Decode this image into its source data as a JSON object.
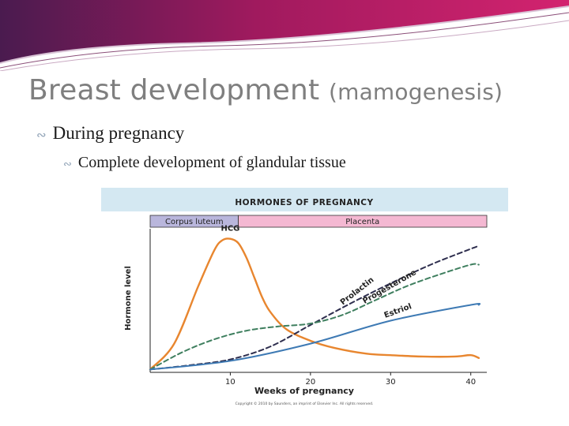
{
  "slide": {
    "title_main": "Breast development ",
    "title_paren": "(mamogenesis)",
    "bullets": [
      {
        "level": 1,
        "text": "During pregnancy"
      },
      {
        "level": 2,
        "text": "Complete development of glandular tissue"
      }
    ],
    "colors": {
      "header_magenta": "#c2185b",
      "header_purple": "#6a1b4d",
      "title_gray": "#7f7f7f",
      "bullet_glyph": "#8fa2b6"
    },
    "bullet_icon": "swirl-bullet-icon"
  },
  "chart_data": {
    "type": "line",
    "title": "HORMONES OF PREGNANCY",
    "xlabel": "Weeks of pregnancy",
    "ylabel": "Hormone level",
    "xlim": [
      0,
      42
    ],
    "ylim": [
      0,
      100
    ],
    "xticks": [
      10,
      20,
      30,
      40
    ],
    "grid": false,
    "phases": [
      {
        "label": "Corpus luteum",
        "x_start": 0,
        "x_end": 11,
        "color": "#b9b6dc"
      },
      {
        "label": "Placenta",
        "x_start": 11,
        "x_end": 42,
        "color": "#f4b8d2"
      }
    ],
    "series": [
      {
        "name": "HCG",
        "color": "#e8862f",
        "style": "solid",
        "points": [
          [
            0,
            2
          ],
          [
            3,
            20
          ],
          [
            6,
            60
          ],
          [
            8,
            85
          ],
          [
            9,
            92
          ],
          [
            10,
            93
          ],
          [
            11,
            90
          ],
          [
            12,
            80
          ],
          [
            13,
            66
          ],
          [
            14,
            52
          ],
          [
            15,
            42
          ],
          [
            17,
            30
          ],
          [
            20,
            22
          ],
          [
            23,
            17
          ],
          [
            27,
            13
          ],
          [
            30,
            12
          ],
          [
            34,
            11
          ],
          [
            38,
            11
          ],
          [
            40,
            12
          ],
          [
            41,
            10
          ]
        ]
      },
      {
        "name": "Prolactin",
        "color": "#2e2e4e",
        "style": "dashed",
        "points": [
          [
            0,
            2
          ],
          [
            5,
            5
          ],
          [
            10,
            9
          ],
          [
            15,
            18
          ],
          [
            20,
            33
          ],
          [
            25,
            48
          ],
          [
            30,
            62
          ],
          [
            35,
            75
          ],
          [
            40,
            86
          ],
          [
            41,
            88
          ]
        ]
      },
      {
        "name": "Progesterone",
        "color": "#3f7f5f",
        "style": "dashed",
        "points": [
          [
            0,
            2
          ],
          [
            4,
            14
          ],
          [
            8,
            23
          ],
          [
            12,
            29
          ],
          [
            16,
            32
          ],
          [
            20,
            34
          ],
          [
            24,
            40
          ],
          [
            28,
            50
          ],
          [
            32,
            60
          ],
          [
            36,
            68
          ],
          [
            40,
            75
          ],
          [
            41,
            75
          ]
        ]
      },
      {
        "name": "Estriol",
        "color": "#3e7ab4",
        "style": "solid",
        "points": [
          [
            0,
            2
          ],
          [
            10,
            8
          ],
          [
            20,
            20
          ],
          [
            30,
            36
          ],
          [
            40,
            47
          ],
          [
            41,
            47
          ]
        ]
      }
    ],
    "copyright": "Copyright © 2010 by Saunders, an imprint of Elsevier Inc. All rights reserved."
  }
}
